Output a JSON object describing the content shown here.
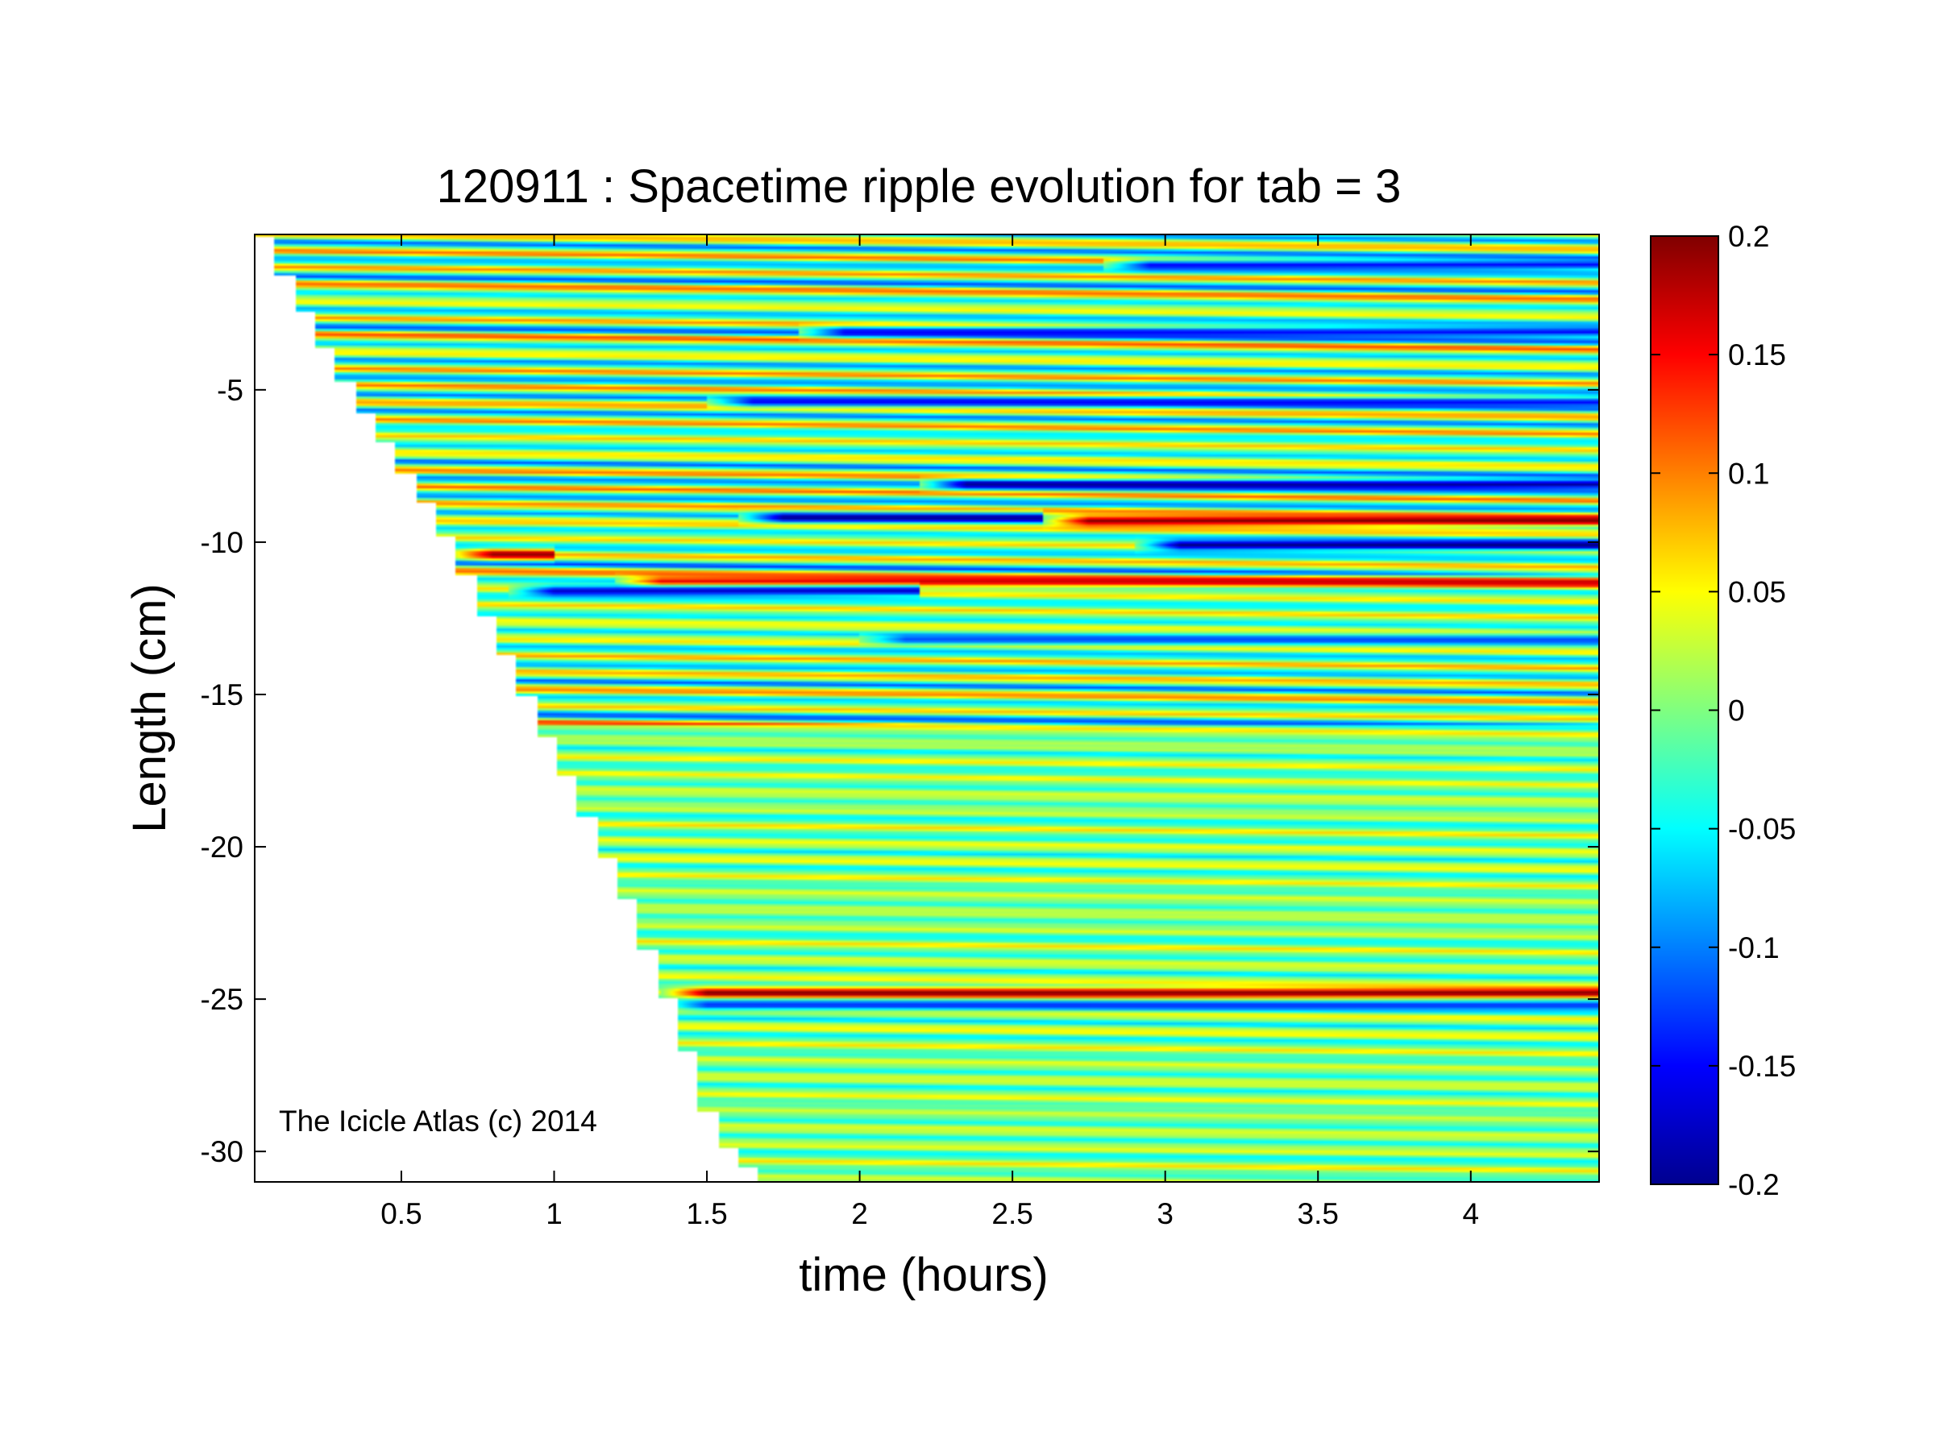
{
  "chart_data": {
    "type": "heatmap",
    "title": "120911 : Spacetime ripple evolution for tab = 3",
    "xlabel": "time (hours)",
    "ylabel": "Length (cm)",
    "xlim": [
      0.02,
      4.42
    ],
    "ylim": [
      -31,
      0.1
    ],
    "x_ticks": [
      0.5,
      1,
      1.5,
      2,
      2.5,
      3,
      3.5,
      4
    ],
    "x_tick_labels": [
      "0.5",
      "1",
      "1.5",
      "2",
      "2.5",
      "3",
      "3.5",
      "4"
    ],
    "y_ticks": [
      -5,
      -10,
      -15,
      -20,
      -25,
      -30
    ],
    "y_tick_labels": [
      "-5",
      "-10",
      "-15",
      "-20",
      "-25",
      "-30"
    ],
    "colorbar": {
      "colormap": "jet",
      "range": [
        -0.2,
        0.2
      ],
      "ticks": [
        0.2,
        0.15,
        0.1,
        0.05,
        0,
        -0.05,
        -0.1,
        -0.15,
        -0.2
      ],
      "tick_labels": [
        "0.2",
        "0.15",
        "0.1",
        "0.05",
        "0",
        "-0.05",
        "-0.1",
        "-0.15",
        "-0.2"
      ]
    },
    "annotation": "The Icicle Atlas (c) 2014",
    "growth_front": {
      "time": [
        0.02,
        0.1,
        0.2,
        0.3,
        0.4,
        0.5,
        0.6,
        0.7,
        0.8,
        0.9,
        1.0,
        1.1,
        1.2,
        1.3,
        1.4,
        1.5,
        1.65
      ],
      "length": [
        0,
        -1.5,
        -3.3,
        -5.0,
        -6.5,
        -8.0,
        -9.5,
        -11.5,
        -13.5,
        -15.5,
        -17.5,
        -19.5,
        -21.5,
        -24.0,
        -26.5,
        -29.5,
        -31.0
      ]
    },
    "banding": {
      "wavelength_cm": 0.55,
      "amplitude_upper": 0.09,
      "amplitude_lower": 0.04
    },
    "features": [
      {
        "label": "red band",
        "value": 0.19,
        "length": -10.4,
        "time_start": 0.65,
        "time_end": 1.0
      },
      {
        "label": "blue band",
        "value": -0.19,
        "length": -9.2,
        "time_start": 1.6,
        "time_end": 2.6
      },
      {
        "label": "red band",
        "value": 0.2,
        "length": -9.3,
        "time_start": 2.6,
        "time_end": 4.42
      },
      {
        "label": "blue band",
        "value": -0.2,
        "length": -10.1,
        "time_start": 2.9,
        "time_end": 4.42
      },
      {
        "label": "blue band",
        "value": -0.19,
        "length": -8.1,
        "time_start": 2.2,
        "time_end": 4.42
      },
      {
        "label": "red band",
        "value": 0.17,
        "length": -11.3,
        "time_start": 1.2,
        "time_end": 4.42
      },
      {
        "label": "blue band",
        "value": -0.17,
        "length": -11.6,
        "time_start": 0.85,
        "time_end": 2.2
      },
      {
        "label": "red band",
        "value": 0.2,
        "length": -24.8,
        "time_start": 1.35,
        "time_end": 4.42
      },
      {
        "label": "blue band",
        "value": -0.13,
        "length": -25.2,
        "time_start": 1.35,
        "time_end": 4.42
      },
      {
        "label": "blue band",
        "value": -0.15,
        "length": -5.4,
        "time_start": 1.5,
        "time_end": 4.42
      },
      {
        "label": "blue band",
        "value": -0.15,
        "length": -3.1,
        "time_start": 1.8,
        "time_end": 4.42
      },
      {
        "label": "blue band",
        "value": -0.15,
        "length": -0.9,
        "time_start": 2.8,
        "time_end": 4.42
      },
      {
        "label": "blue band",
        "value": -0.12,
        "length": -13.2,
        "time_start": 2.0,
        "time_end": 4.42
      }
    ]
  }
}
